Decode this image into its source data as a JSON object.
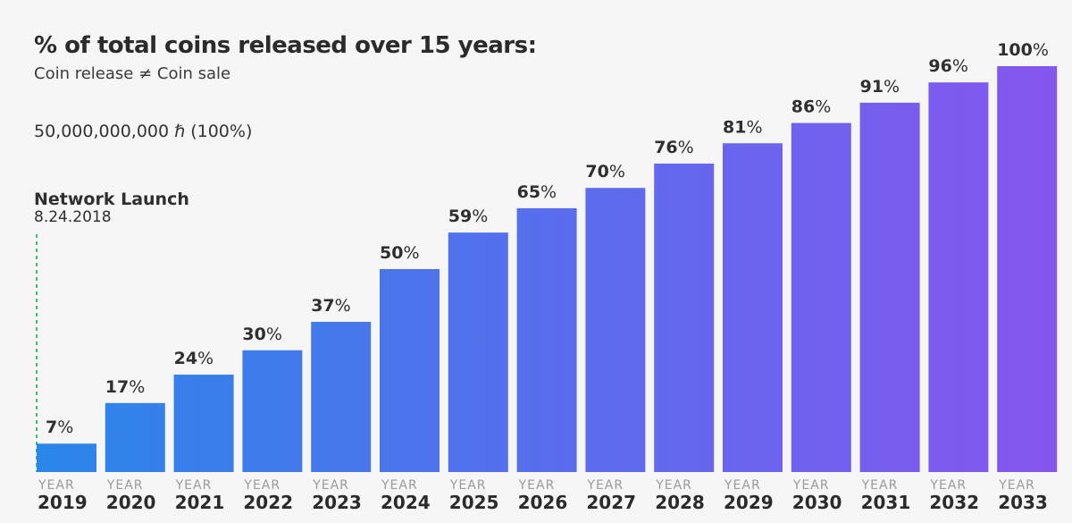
{
  "title": "% of total coins released over 15 years:",
  "subtitle": "Coin release ≠ Coin sale",
  "supply_label": "50,000,000,000 ℏ (100%)",
  "launch": {
    "title": "Network Launch",
    "date": "8.24.2018"
  },
  "colors": {
    "bar_start": "#2a86ea",
    "bar_end": "#8656ef",
    "launch_line": "#3fbf6a"
  },
  "chart_data": {
    "type": "bar",
    "title": "% of total coins released over 15 years:",
    "xlabel": "",
    "ylabel": "",
    "ylim": [
      0,
      100
    ],
    "grid": false,
    "year_prefix": "YEAR",
    "categories": [
      "2019",
      "2020",
      "2021",
      "2022",
      "2023",
      "2024",
      "2025",
      "2026",
      "2027",
      "2028",
      "2029",
      "2030",
      "2031",
      "2032",
      "2033"
    ],
    "values": [
      7,
      17,
      24,
      30,
      37,
      50,
      59,
      65,
      70,
      76,
      81,
      86,
      91,
      96,
      100
    ],
    "unit": "%"
  }
}
